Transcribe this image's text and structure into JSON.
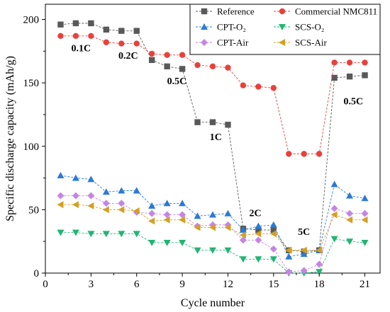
{
  "chart_data": {
    "type": "line",
    "xlabel": "Cycle number",
    "ylabel": "Specific discharge capacity (mAh/g)",
    "xlim": [
      0,
      22
    ],
    "ylim": [
      0,
      212
    ],
    "xticks": [
      0,
      3,
      6,
      9,
      12,
      15,
      18,
      21
    ],
    "yticks": [
      0,
      50,
      100,
      150,
      200
    ],
    "grid": false,
    "legend_position": "top-right",
    "x": [
      1,
      2,
      3,
      4,
      5,
      6,
      7,
      8,
      9,
      10,
      11,
      12,
      13,
      14,
      15,
      16,
      17,
      18,
      19,
      20,
      21
    ],
    "series": [
      {
        "name": "Reference",
        "color": "#595959",
        "marker": "square",
        "values": [
          196,
          197,
          197,
          192,
          191,
          191,
          168,
          163,
          161,
          119,
          119,
          117,
          35,
          34,
          34,
          18,
          17,
          18,
          154,
          155,
          156
        ]
      },
      {
        "name": "Commercial NMC811",
        "color": "#e8413c",
        "marker": "circle",
        "values": [
          187,
          187,
          187,
          182,
          181,
          181,
          173,
          172,
          172,
          164,
          163,
          162,
          148,
          147,
          146,
          94,
          94,
          94,
          166,
          166,
          166
        ]
      },
      {
        "name": "CPT-O₂",
        "color": "#2a7ad6",
        "marker": "triangle-up",
        "values": [
          77,
          75,
          74,
          64,
          65,
          65,
          53,
          55,
          55,
          45,
          46,
          47,
          34,
          37,
          38,
          13,
          15,
          18,
          70,
          61,
          59
        ]
      },
      {
        "name": "SCS-O₂",
        "color": "#22b573",
        "marker": "triangle-down",
        "values": [
          32,
          32,
          31,
          31,
          31,
          31,
          24,
          24,
          24,
          18,
          18,
          18,
          11,
          11,
          11,
          0,
          0,
          1,
          27,
          25,
          24
        ]
      },
      {
        "name": "CPT-Air",
        "color": "#c685e4",
        "marker": "diamond",
        "values": [
          61,
          61,
          61,
          55,
          55,
          48,
          47,
          46,
          46,
          37,
          38,
          38,
          26,
          26,
          19,
          1,
          2,
          7,
          51,
          47,
          47
        ]
      },
      {
        "name": "SCS-Air",
        "color": "#d4a020",
        "marker": "triangle-left",
        "values": [
          54,
          54,
          53,
          50,
          50,
          49,
          41,
          42,
          42,
          36,
          36,
          36,
          30,
          31,
          31,
          18,
          18,
          18,
          46,
          42,
          42
        ]
      }
    ],
    "annotations": [
      {
        "text": "0.1C",
        "x": 1.7,
        "y": 175
      },
      {
        "text": "0.2C",
        "x": 4.8,
        "y": 169
      },
      {
        "text": "0.5C",
        "x": 8.0,
        "y": 149
      },
      {
        "text": "1C",
        "x": 10.8,
        "y": 105
      },
      {
        "text": "2C",
        "x": 13.4,
        "y": 45
      },
      {
        "text": "5C",
        "x": 16.6,
        "y": 30
      },
      {
        "text": "0.5C",
        "x": 19.6,
        "y": 133
      }
    ]
  }
}
